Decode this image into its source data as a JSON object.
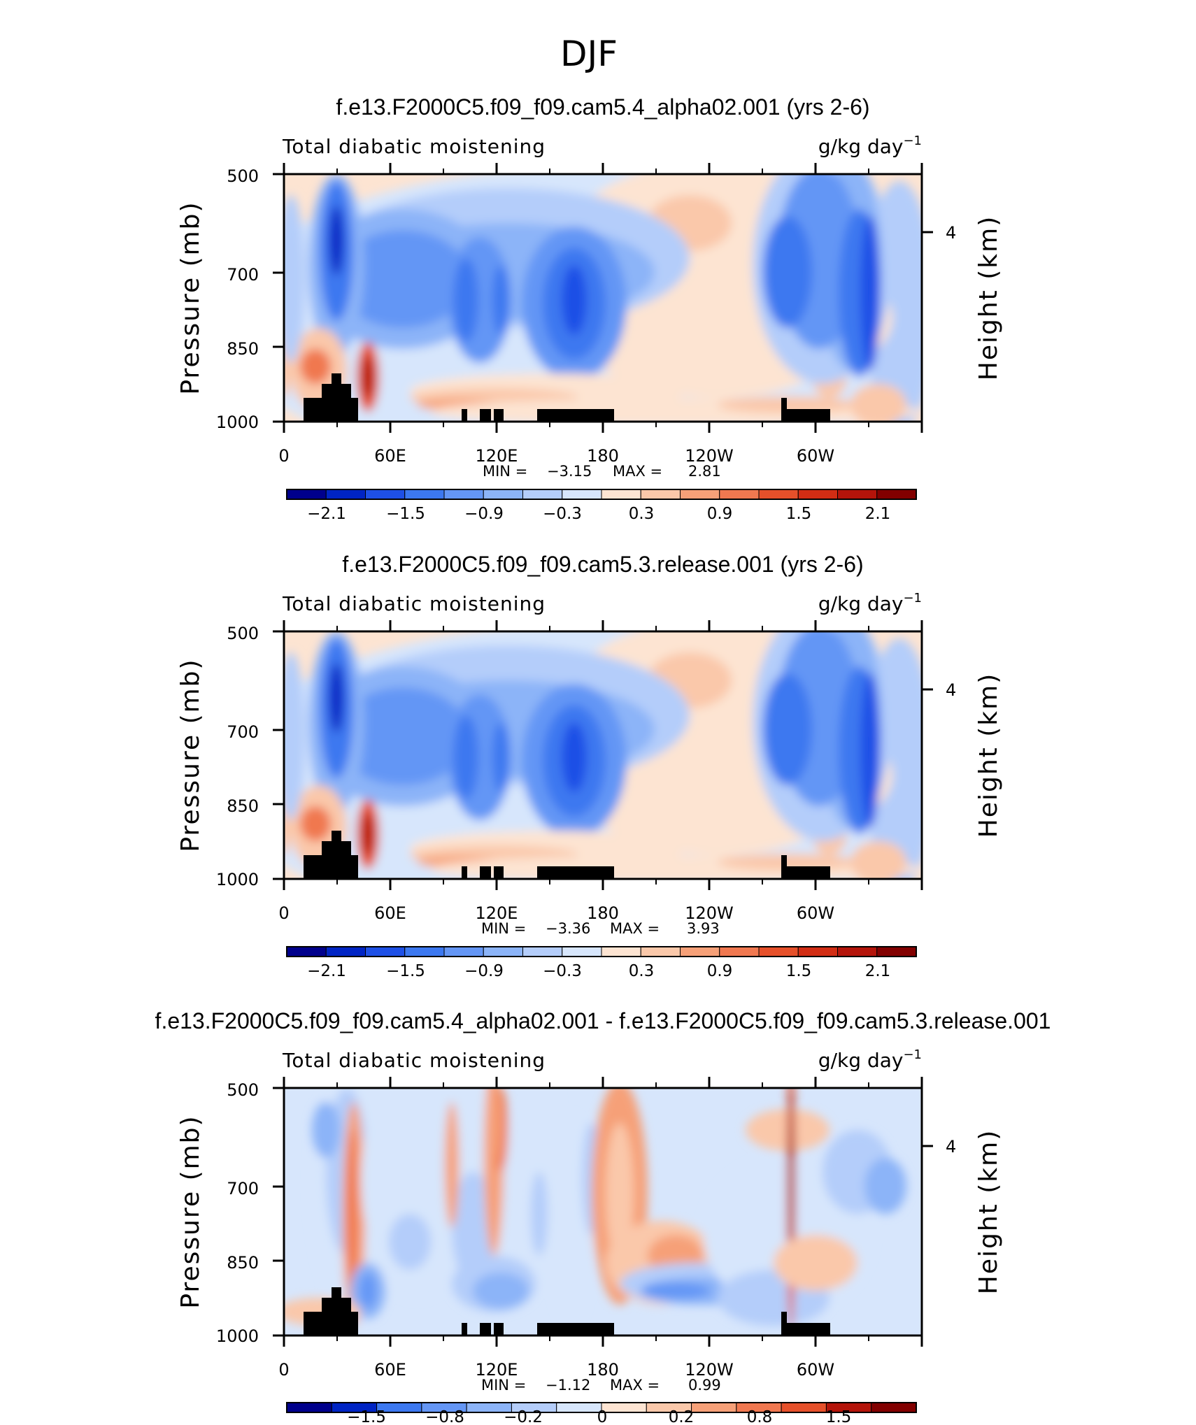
{
  "figure_title": "DJF",
  "chart_data": [
    {
      "type": "heatmap",
      "title": "f.e13.F2000C5.f09_f09.cam5.4_alpha02.001 (yrs 2-6)",
      "left_label": "Total diabatic moistening",
      "units": "g/kg day",
      "units_exp": "−1",
      "ylabel": "Pressure (mb)",
      "ylabel_right": "Height (km)",
      "y_ticks": [
        "500",
        "700",
        "850",
        "1000"
      ],
      "y_right_ticks": [
        "4"
      ],
      "x_ticks": [
        "0",
        "60E",
        "120E",
        "180",
        "120W",
        "60W"
      ],
      "stats": {
        "min_label": "MIN =",
        "min": "−3.15",
        "max_label": "MAX =",
        "max": "2.81"
      },
      "colorbar_labels": [
        "−2.1",
        "−1.5",
        "−0.9",
        "−0.3",
        "0.3",
        "0.9",
        "1.5",
        "2.1"
      ]
    },
    {
      "type": "heatmap",
      "title": "f.e13.F2000C5.f09_f09.cam5.3.release.001 (yrs 2-6)",
      "left_label": "Total diabatic moistening",
      "units": "g/kg day",
      "units_exp": "−1",
      "ylabel": "Pressure (mb)",
      "ylabel_right": "Height (km)",
      "y_ticks": [
        "500",
        "700",
        "850",
        "1000"
      ],
      "y_right_ticks": [
        "4"
      ],
      "x_ticks": [
        "0",
        "60E",
        "120E",
        "180",
        "120W",
        "60W"
      ],
      "stats": {
        "min_label": "MIN =",
        "min": "−3.36",
        "max_label": "MAX =",
        "max": "3.93"
      },
      "colorbar_labels": [
        "−2.1",
        "−1.5",
        "−0.9",
        "−0.3",
        "0.3",
        "0.9",
        "1.5",
        "2.1"
      ]
    },
    {
      "type": "heatmap",
      "title": "f.e13.F2000C5.f09_f09.cam5.4_alpha02.001 - f.e13.F2000C5.f09_f09.cam5.3.release.001",
      "left_label": "Total diabatic moistening",
      "units": "g/kg day",
      "units_exp": "−1",
      "ylabel": "Pressure (mb)",
      "ylabel_right": "Height (km)",
      "y_ticks": [
        "500",
        "700",
        "850",
        "1000"
      ],
      "y_right_ticks": [
        "4"
      ],
      "x_ticks": [
        "0",
        "60E",
        "120E",
        "180",
        "120W",
        "60W"
      ],
      "stats": {
        "min_label": "MIN =",
        "min": "−1.12",
        "max_label": "MAX =",
        "max": "0.99"
      },
      "colorbar_labels": [
        "−1.5",
        "−0.8",
        "−0.2",
        "0",
        "0.2",
        "0.8",
        "1.5"
      ]
    }
  ],
  "colors": {
    "palette16": [
      "#00008c",
      "#0024c4",
      "#1e50e6",
      "#3c78f0",
      "#6496f5",
      "#8cb4f8",
      "#b4cdfa",
      "#d7e6fc",
      "#fde4d2",
      "#fac8aa",
      "#f6a078",
      "#f07850",
      "#e6502a",
      "#d22d14",
      "#b4140a",
      "#820000"
    ],
    "palette14": [
      "#00008c",
      "#0024c4",
      "#3c78f0",
      "#6496f5",
      "#8cb4f8",
      "#b4cdfa",
      "#d7e6fc",
      "#fde4d2",
      "#fac8aa",
      "#f6a078",
      "#f07850",
      "#e6502a",
      "#b4140a",
      "#820000"
    ],
    "terrain": "#000000"
  }
}
